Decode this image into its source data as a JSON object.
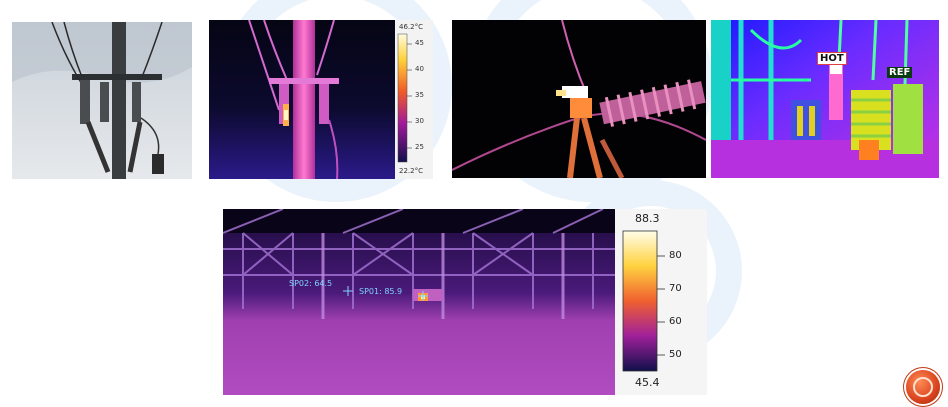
{
  "panel_top_2": {
    "scale_max": "46.2°C",
    "scale_min": "22.2°C",
    "ticks": [
      "45",
      "40",
      "35",
      "30",
      "25"
    ]
  },
  "panel_top_4": {
    "label_hot": "HOT",
    "label_ref": "REF"
  },
  "panel_bottom": {
    "spot_2": "SP02: 64.5",
    "spot_1": "SP01: 85.9",
    "scale_max": "88.3",
    "scale_min": "45.4",
    "ticks": [
      "80",
      "70",
      "60",
      "50"
    ]
  },
  "colors": {
    "accent": "#d9431e",
    "watermark": "#eaf3fb",
    "spot_label": "#7fd3ff"
  }
}
